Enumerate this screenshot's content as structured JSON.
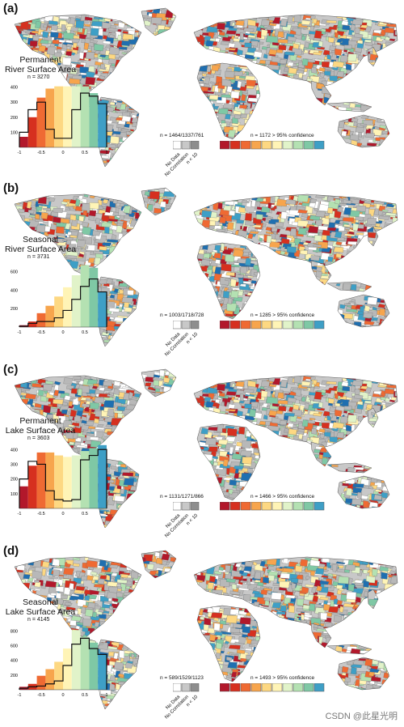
{
  "palette": [
    "#b2182b",
    "#d6301f",
    "#ef6a33",
    "#f7a54d",
    "#fdd882",
    "#fff4b6",
    "#e1f3c9",
    "#b4e1b2",
    "#7fc8a5",
    "#3e9fc6",
    "#1f6fb0"
  ],
  "scale_labels": [
    "-1.0 - -0.8",
    "-0.8 - -0.6",
    "-0.6 - -0.4",
    "-0.4 - -0.2",
    "-0.2 - 0.0",
    "0.0 - 0.2",
    "0.2 - 0.4",
    "0.4 - 0.6",
    "0.6 - 0.8",
    "0.8 - 1.0"
  ],
  "gray_labels": [
    "No Data",
    "No Correlation",
    "n < 10"
  ],
  "hist_ticks": [
    "-1",
    "-0.5",
    "0",
    "0.5",
    "1"
  ],
  "panels": [
    {
      "label": "(a)",
      "title_line1": "Permanent",
      "title_line2": "River Surface Area",
      "n_total": "n = 3270",
      "gray_counts": "n = 1464/1337/761",
      "confidence": "n = 1172 > 95% confidence",
      "yticks": [
        "100",
        "200",
        "300",
        "400"
      ],
      "bars": [
        70,
        200,
        330,
        390,
        405,
        405,
        405,
        405,
        360,
        310
      ],
      "outline": [
        100,
        250,
        300,
        120,
        60,
        60,
        250,
        360,
        340,
        290
      ],
      "ymax": 430
    },
    {
      "label": "(b)",
      "title_line1": "Seasonal",
      "title_line2": "River Surface Area",
      "n_total": "n = 3731",
      "gray_counts": "n = 1003/1718/728",
      "confidence": "n = 1285 > 95% confidence",
      "yticks": [
        "200",
        "400",
        "600"
      ],
      "bars": [
        20,
        60,
        150,
        230,
        330,
        430,
        560,
        670,
        640,
        380
      ],
      "outline": [
        10,
        40,
        60,
        60,
        100,
        180,
        300,
        440,
        520,
        380
      ],
      "ymax": 700
    },
    {
      "label": "(c)",
      "title_line1": "Permanent",
      "title_line2": "Lake Surface Area",
      "n_total": "n = 3603",
      "gray_counts": "n = 1131/1271/866",
      "confidence": "n = 1466 > 95% confidence",
      "yticks": [
        "100",
        "200",
        "300",
        "400"
      ],
      "bars": [
        150,
        290,
        380,
        380,
        360,
        350,
        360,
        390,
        410,
        430
      ],
      "outline": [
        200,
        320,
        300,
        120,
        60,
        50,
        60,
        330,
        360,
        400
      ],
      "ymax": 440
    },
    {
      "label": "(d)",
      "title_line1": "Seasonal",
      "title_line2": "Lake Surface Area",
      "n_total": "n = 4145",
      "gray_counts": "n = 589/1529/1123",
      "confidence": "n = 1493 > 95% confidence",
      "yticks": [
        "200",
        "400",
        "600",
        "800"
      ],
      "bars": [
        40,
        80,
        190,
        280,
        380,
        560,
        810,
        720,
        640,
        480
      ],
      "outline": [
        20,
        40,
        50,
        80,
        120,
        330,
        620,
        700,
        560,
        480
      ],
      "ymax": 880
    }
  ],
  "watermark": "CSDN @此星光明"
}
